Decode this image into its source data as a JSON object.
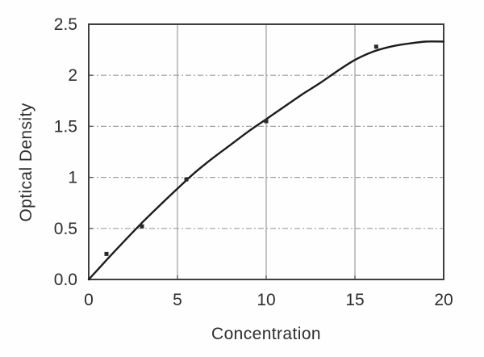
{
  "chart_data": {
    "type": "line",
    "title": "",
    "xlabel": "Concentration",
    "ylabel": "Optical Density",
    "xlim": [
      0,
      20
    ],
    "ylim": [
      0,
      2.5
    ],
    "x_ticks": {
      "values": [
        0,
        5,
        10,
        15,
        20
      ],
      "labels": [
        "0",
        "5",
        "10",
        "15",
        "20"
      ]
    },
    "y_ticks": {
      "values": [
        0,
        0.5,
        1,
        1.5,
        2,
        2.5
      ],
      "labels": [
        "0.0",
        "0.5",
        "1",
        "1.5",
        "2",
        "2.5"
      ]
    },
    "grid": {
      "vertical": {
        "values": [
          5,
          10,
          15
        ],
        "style": "solid"
      },
      "horizontal": {
        "values": [
          0.5,
          1,
          1.5,
          2
        ],
        "style": "dashed"
      }
    },
    "legend": "none",
    "series": [
      {
        "name": "fitted-curve",
        "type": "line",
        "x": [
          0,
          1,
          2,
          3,
          4,
          5,
          6,
          7,
          8,
          9,
          10,
          11,
          12,
          13,
          14,
          15,
          16,
          17,
          18,
          19,
          20
        ],
        "y": [
          0,
          0.19,
          0.375,
          0.555,
          0.725,
          0.89,
          1.05,
          1.19,
          1.32,
          1.45,
          1.57,
          1.69,
          1.81,
          1.92,
          2.04,
          2.15,
          2.23,
          2.28,
          2.31,
          2.33,
          2.33
        ]
      },
      {
        "name": "data-points",
        "type": "scatter",
        "points": [
          [
            1,
            0.25
          ],
          [
            3,
            0.52
          ],
          [
            5.5,
            0.98
          ],
          [
            10,
            1.55
          ],
          [
            16.2,
            2.28
          ]
        ]
      }
    ],
    "colors": {
      "curve": "#1c1c1c",
      "marker": "#2a2a2a",
      "grid": "#9e9e9e",
      "frame": "#3f3f3f",
      "tick": "#555555",
      "text": "#2d2d2d",
      "background": "#fefefe"
    }
  }
}
